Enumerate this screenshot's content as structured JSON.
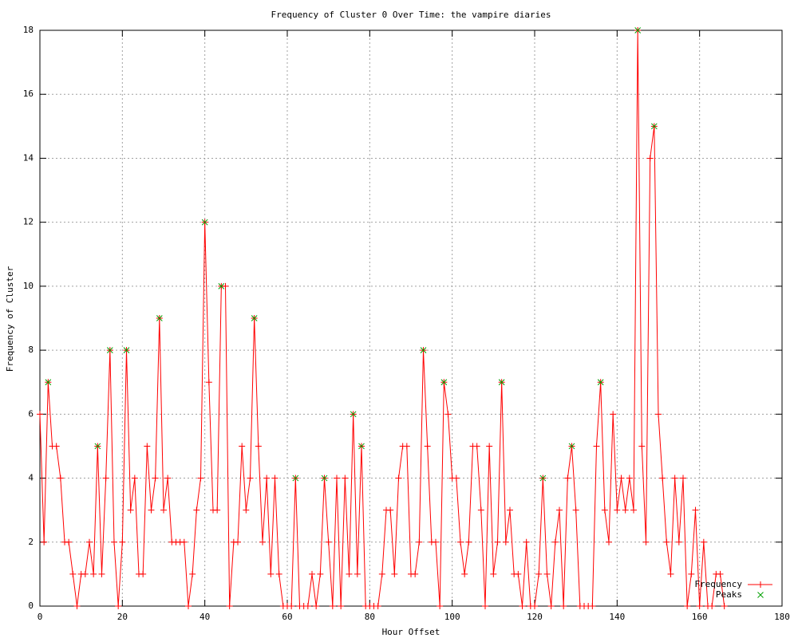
{
  "chart_data": {
    "type": "line",
    "title": "Frequency of Cluster 0 Over Time: the vampire diaries",
    "x_label": "Hour Offset",
    "y_label": "Frequency of Cluster",
    "xlim": [
      0,
      180
    ],
    "xticks": [
      0,
      20,
      40,
      60,
      80,
      100,
      120,
      140,
      160,
      180
    ],
    "ylim": [
      0,
      18
    ],
    "yticks": [
      0,
      2,
      4,
      6,
      8,
      10,
      12,
      14,
      16,
      18
    ],
    "grid": true,
    "legend": "bottom right",
    "series": [
      {
        "name": "Frequency",
        "color": "#ff0000",
        "marker": "plus",
        "x": [
          0,
          1,
          2,
          3,
          4,
          5,
          6,
          7,
          8,
          9,
          10,
          11,
          12,
          13,
          14,
          15,
          16,
          17,
          18,
          19,
          20,
          21,
          22,
          23,
          24,
          25,
          26,
          27,
          28,
          29,
          30,
          31,
          32,
          33,
          34,
          35,
          36,
          37,
          38,
          39,
          40,
          41,
          42,
          43,
          44,
          45,
          46,
          47,
          48,
          49,
          50,
          51,
          52,
          53,
          54,
          55,
          56,
          57,
          58,
          59,
          60,
          61,
          62,
          63,
          64,
          65,
          66,
          67,
          68,
          69,
          70,
          71,
          72,
          73,
          74,
          75,
          76,
          77,
          78,
          79,
          80,
          81,
          82,
          83,
          84,
          85,
          86,
          87,
          88,
          89,
          90,
          91,
          92,
          93,
          94,
          95,
          96,
          97,
          98,
          99,
          100,
          101,
          102,
          103,
          104,
          105,
          106,
          107,
          108,
          109,
          110,
          111,
          112,
          113,
          114,
          115,
          116,
          117,
          118,
          119,
          120,
          121,
          122,
          123,
          124,
          125,
          126,
          127,
          128,
          129,
          130,
          131,
          132,
          133,
          134,
          135,
          136,
          137,
          138,
          139,
          140,
          141,
          142,
          143,
          144,
          145,
          146,
          147,
          148,
          149,
          150,
          151,
          152,
          153,
          154,
          155,
          156,
          157,
          158,
          159,
          160,
          161,
          162,
          163,
          164,
          165,
          166
        ],
        "values": [
          6,
          2,
          7,
          5,
          5,
          4,
          2,
          2,
          1,
          0,
          1,
          1,
          2,
          1,
          5,
          1,
          4,
          8,
          2,
          0,
          2,
          8,
          3,
          4,
          1,
          1,
          5,
          3,
          4,
          9,
          3,
          4,
          2,
          2,
          2,
          2,
          0,
          1,
          3,
          4,
          12,
          7,
          3,
          3,
          10,
          10,
          0,
          2,
          2,
          5,
          3,
          4,
          9,
          5,
          2,
          4,
          1,
          4,
          1,
          0,
          0,
          0,
          4,
          0,
          0,
          0,
          1,
          0,
          1,
          4,
          2,
          0,
          4,
          0,
          4,
          1,
          6,
          1,
          5,
          0,
          0,
          0,
          0,
          1,
          3,
          3,
          1,
          4,
          5,
          5,
          1,
          1,
          2,
          8,
          5,
          2,
          2,
          0,
          7,
          6,
          4,
          4,
          2,
          1,
          2,
          5,
          5,
          3,
          0,
          5,
          1,
          2,
          7,
          2,
          3,
          1,
          1,
          0,
          2,
          0,
          0,
          1,
          4,
          1,
          0,
          2,
          3,
          0,
          4,
          5,
          3,
          0,
          0,
          0,
          0,
          5,
          7,
          3,
          2,
          6,
          3,
          4,
          3,
          4,
          3,
          18,
          5,
          2,
          14,
          15,
          6,
          4,
          2,
          1,
          4,
          2,
          4,
          0,
          1,
          3,
          0,
          2,
          0,
          0,
          1,
          1,
          0
        ]
      },
      {
        "name": "Peaks",
        "color": "#00a000",
        "marker": "cross",
        "points_only": true,
        "x": [
          2,
          14,
          17,
          21,
          29,
          40,
          44,
          52,
          62,
          69,
          76,
          78,
          93,
          98,
          112,
          122,
          129,
          136,
          145,
          149
        ],
        "values": [
          7,
          5,
          8,
          8,
          9,
          12,
          10,
          9,
          4,
          4,
          6,
          5,
          8,
          7,
          7,
          4,
          5,
          7,
          18,
          15
        ]
      }
    ]
  }
}
